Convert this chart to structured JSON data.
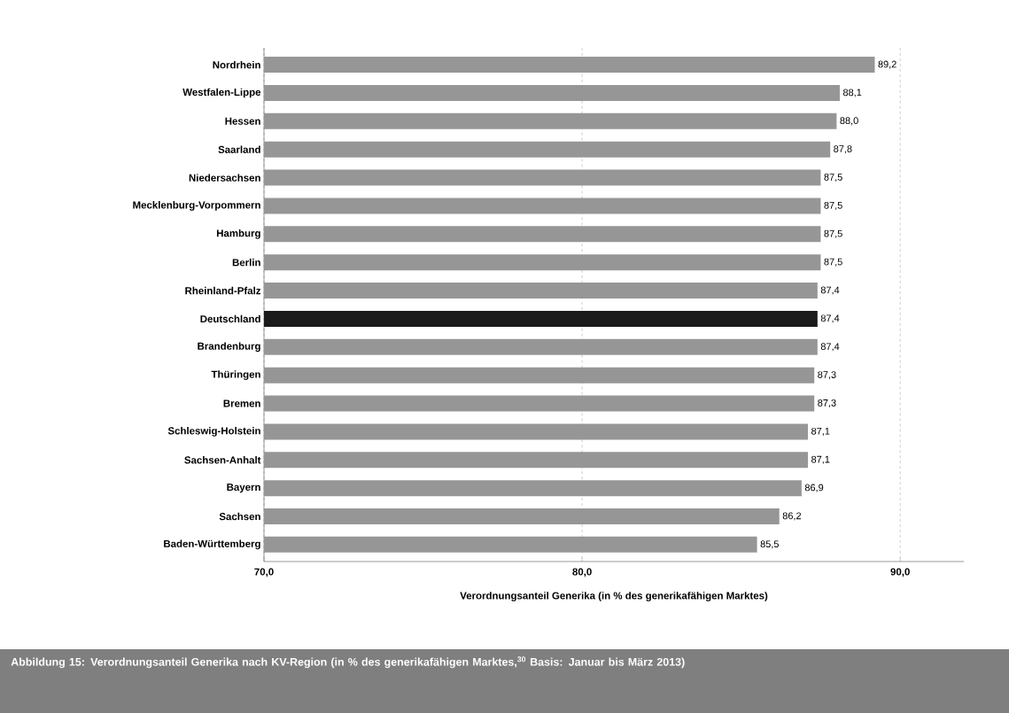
{
  "chart_data": {
    "type": "bar",
    "orientation": "horizontal",
    "title": "Abbildung 15:   Verordnungsanteil Generika nach KV-Region (in % des generikafähigen Marktes,$^{30}$ Basis: Januar bis März 2013)",
    "xlabel": "Verordnungsanteil Generika (in % des generikafähigen Marktes)",
    "categories": [
      "Nordrhein",
      "Westfalen-Lippe",
      "Hessen",
      "Saarland",
      "Niedersachsen",
      "Mecklenburg-Vorpommern",
      "Hamburg",
      "Berlin",
      "Rheinland-Pfalz",
      "Deutschland",
      "Brandenburg",
      "Thüringen",
      "Bremen",
      "Schleswig-Holstein",
      "Sachsen-Anhalt",
      "Bayern",
      "Sachsen",
      "Baden-Württemberg"
    ],
    "values": [
      89.2,
      88.1,
      88.0,
      87.8,
      87.5,
      87.5,
      87.5,
      87.5,
      87.4,
      87.4,
      87.4,
      87.3,
      87.3,
      87.1,
      87.1,
      86.9,
      86.2,
      85.5
    ],
    "value_labels": [
      "89,2",
      "88,1",
      "88,0",
      "87,8",
      "87,5",
      "87,5",
      "87,5",
      "87,5",
      "87,4",
      "87,4",
      "87,4",
      "87,3",
      "87,3",
      "87,1",
      "87,1",
      "86,9",
      "86,2",
      "85,5"
    ],
    "colors": [
      "#969696",
      "#969696",
      "#969696",
      "#969696",
      "#969696",
      "#969696",
      "#969696",
      "#969696",
      "#969696",
      "#1a1a1a",
      "#969696",
      "#969696",
      "#969696",
      "#969696",
      "#969696",
      "#969696",
      "#969696",
      "#969696"
    ],
    "xlim": [
      70,
      92
    ],
    "xticks": [
      {
        "value": 70,
        "label": "70,0"
      },
      {
        "value": 80,
        "label": "80,0"
      },
      {
        "value": 90,
        "label": "90,0"
      }
    ],
    "grid": "x"
  }
}
